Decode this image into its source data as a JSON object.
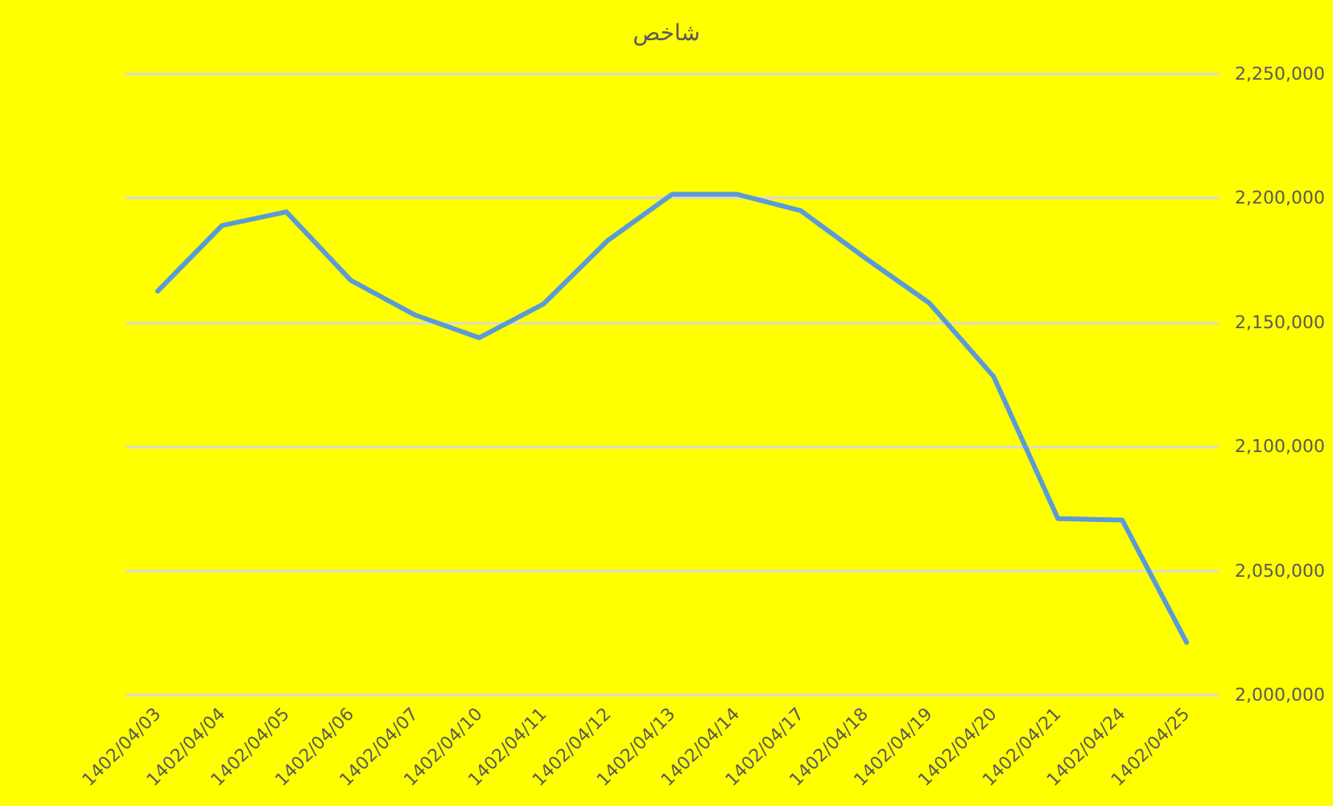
{
  "chart_data": {
    "type": "line",
    "title": "شاخص",
    "categories": [
      "1402/04/03",
      "1402/04/04",
      "1402/04/05",
      "1402/04/06",
      "1402/04/07",
      "1402/04/10",
      "1402/04/11",
      "1402/04/12",
      "1402/04/13",
      "1402/04/14",
      "1402/04/17",
      "1402/04/18",
      "1402/04/19",
      "1402/04/20",
      "1402/04/21",
      "1402/04/24",
      "1402/04/25"
    ],
    "series": [
      {
        "color": "#5b9bd5",
        "values": [
          2162600,
          2189000,
          2194500,
          2167000,
          2153000,
          2143800,
          2157400,
          2183000,
          2201600,
          2201600,
          2195000,
          2176000,
          2157800,
          2128200,
          2071000,
          2070400,
          2021200
        ]
      }
    ],
    "ylim": [
      2000000,
      2250000
    ],
    "yticks": [
      {
        "value": 2000000,
        "label": "2,000,000"
      },
      {
        "value": 2050000,
        "label": "2,050,000"
      },
      {
        "value": 2100000,
        "label": "2,100,000"
      },
      {
        "value": 2150000,
        "label": "2,150,000"
      },
      {
        "value": 2200000,
        "label": "2,200,000"
      },
      {
        "value": 2250000,
        "label": "2,250,000"
      }
    ],
    "grid": "y",
    "marker": "none"
  }
}
